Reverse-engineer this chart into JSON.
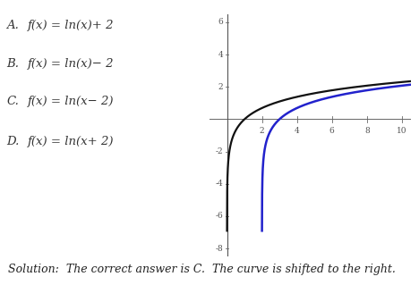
{
  "options_letters": [
    "A.",
    "B.",
    "C.",
    "D."
  ],
  "options_formulas": [
    "f(x) = ln(x)+ 2",
    "f(x) = ln(x)− 2",
    "f(x) = ln(x− 2)",
    "f(x) = ln(x+ 2)"
  ],
  "solution_text": "Solution:  The correct answer is C.  The curve is shifted to the right.",
  "xlim": [
    -1,
    10.5
  ],
  "ylim": [
    -8.5,
    6.5
  ],
  "x_axis_ticks": [
    2,
    4,
    6,
    8,
    10
  ],
  "y_axis_ticks": [
    -8,
    -6,
    -4,
    -2,
    2,
    4,
    6
  ],
  "curve1_color": "#111111",
  "curve2_color": "#2222cc",
  "background_color": "#ffffff",
  "font_size_options": 9.5,
  "font_size_solution": 9
}
